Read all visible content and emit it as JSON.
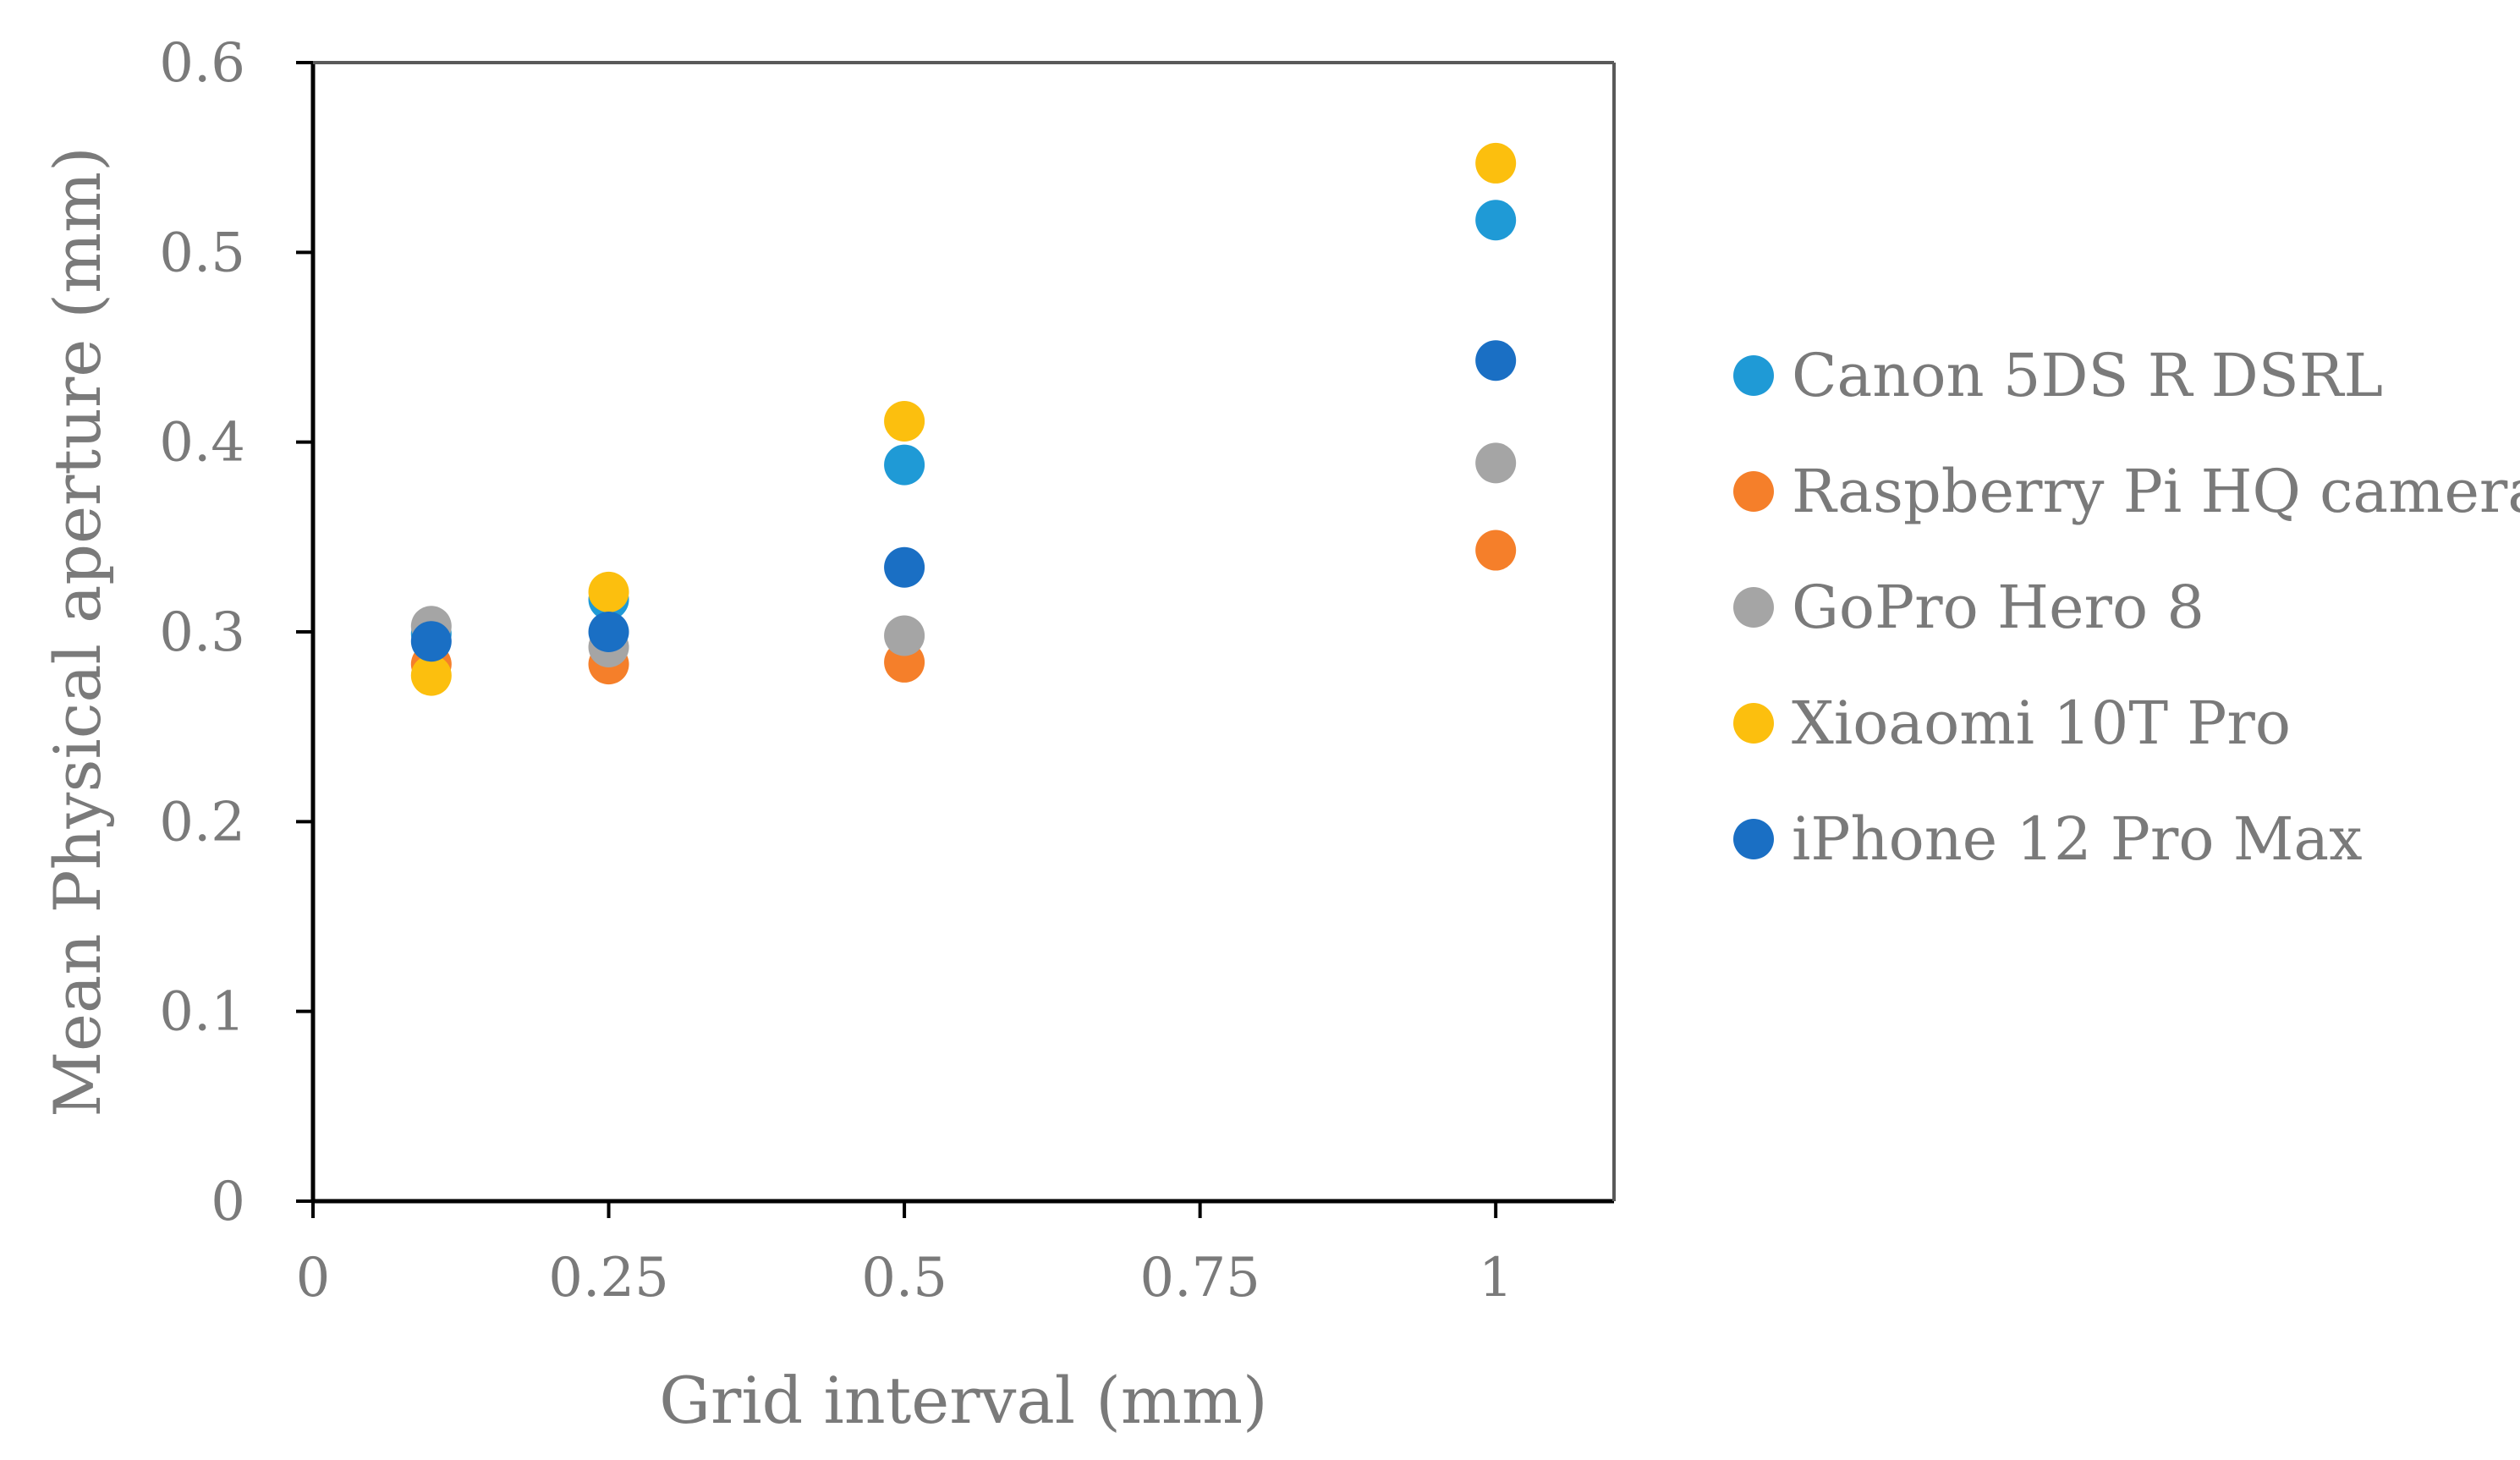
{
  "chart_data": {
    "type": "scatter",
    "title": "",
    "xlabel": "Grid interval (mm)",
    "ylabel": "Mean Physical aperture (mm)",
    "xlim": [
      0,
      1.1
    ],
    "ylim": [
      0,
      0.6
    ],
    "x_ticks": [
      0,
      0.25,
      0.5,
      0.75,
      1
    ],
    "x_tick_labels": [
      "0",
      "0.25",
      "0.5",
      "0.75",
      "1"
    ],
    "y_ticks": [
      0,
      0.1,
      0.2,
      0.3,
      0.4,
      0.5,
      0.6
    ],
    "y_tick_labels": [
      "0",
      "0.1",
      "0.2",
      "0.3",
      "0.4",
      "0.5",
      "0.6"
    ],
    "grid": false,
    "legend_position": "right",
    "x": [
      0.1,
      0.25,
      0.5,
      1
    ],
    "series": [
      {
        "name": "Canon 5DS R DSRL",
        "color": "#1f9ad6",
        "values": [
          0.299,
          0.317,
          0.388,
          0.517
        ]
      },
      {
        "name": "Raspberry Pi HQ camera",
        "color": "#f57f2a",
        "values": [
          0.283,
          0.283,
          0.284,
          0.343
        ]
      },
      {
        "name": "GoPro Hero 8",
        "color": "#a5a5a5",
        "values": [
          0.303,
          0.292,
          0.298,
          0.389
        ]
      },
      {
        "name": "Xioaomi 10T Pro",
        "color": "#fcbf0e",
        "values": [
          0.277,
          0.321,
          0.411,
          0.547
        ]
      },
      {
        "name": "iPhone 12 Pro Max",
        "color": "#1a6fc4",
        "values": [
          0.295,
          0.3,
          0.334,
          0.443
        ]
      }
    ]
  }
}
